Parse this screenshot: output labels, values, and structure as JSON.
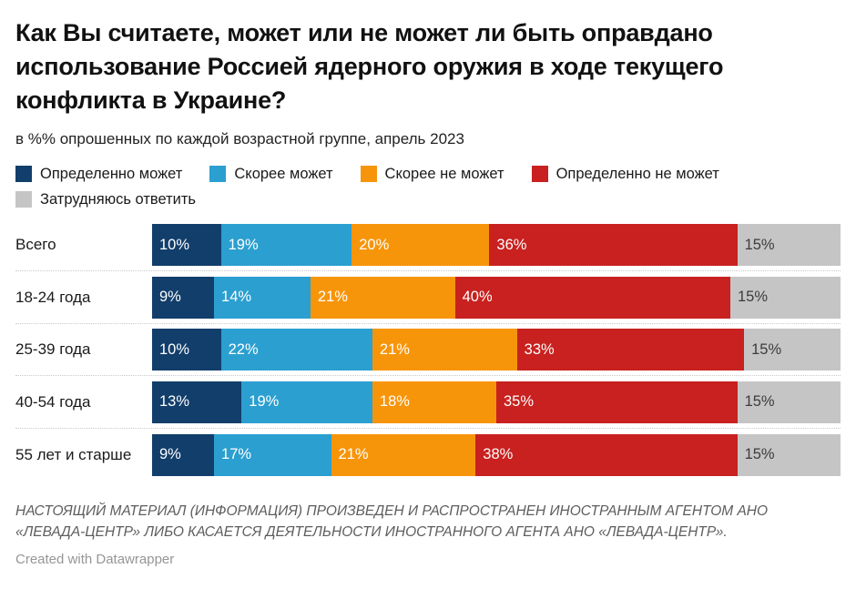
{
  "header": {
    "title": "Как Вы считаете, может или не может ли быть оправдано использование Россией ядерного оружия в ходе текущего конфликта в Украине?",
    "subtitle": "в %% опрошенных по каждой возрастной группе, апрель 2023"
  },
  "colors": {
    "definitely_can": "#123e6b",
    "rather_can": "#2b9fd0",
    "rather_cannot": "#f7950a",
    "definitely_cannot": "#c8211f",
    "hard_to_say": "#c5c5c5"
  },
  "legend": [
    {
      "label": "Определенно может",
      "color": "#123e6b"
    },
    {
      "label": "Скорее может",
      "color": "#2b9fd0"
    },
    {
      "label": "Скорее не может",
      "color": "#f7950a"
    },
    {
      "label": "Определенно не может",
      "color": "#c8211f"
    },
    {
      "label": "Затрудняюсь ответить",
      "color": "#c5c5c5"
    }
  ],
  "chart_data": {
    "type": "bar",
    "stacked": true,
    "orientation": "horizontal",
    "title": "Как Вы считаете, может или не может ли быть оправдано использование Россией ядерного оружия в ходе текущего конфликта в Украине?",
    "subtitle": "в %% опрошенных по каждой возрастной группе, апрель 2023",
    "categories": [
      "Всего",
      "18-24 года",
      "25-39 года",
      "40-54 года",
      "55 лет и старше"
    ],
    "series": [
      {
        "name": "Определенно может",
        "color": "#123e6b",
        "values": [
          10,
          9,
          10,
          13,
          9
        ]
      },
      {
        "name": "Скорее может",
        "color": "#2b9fd0",
        "values": [
          19,
          14,
          22,
          19,
          17
        ]
      },
      {
        "name": "Скорее не может",
        "color": "#f7950a",
        "values": [
          20,
          21,
          21,
          18,
          21
        ]
      },
      {
        "name": "Определенно не может",
        "color": "#c8211f",
        "values": [
          36,
          40,
          33,
          35,
          38
        ]
      },
      {
        "name": "Затрудняюсь ответить",
        "color": "#c5c5c5",
        "values": [
          15,
          15,
          15,
          15,
          15
        ]
      }
    ],
    "value_suffix": "%",
    "xlim": [
      0,
      100
    ],
    "grid": false,
    "legend_position": "top"
  },
  "footer": {
    "disclaimer": "НАСТОЯЩИЙ МАТЕРИАЛ (ИНФОРМАЦИЯ) ПРОИЗВЕДЕН И РАСПРОСТРАНЕН ИНОСТРАННЫМ АГЕНТОМ АНО «ЛЕВАДА-ЦЕНТР» ЛИБО КАСАЕТСЯ ДЕЯТЕЛЬНОСТИ ИНОСТРАННОГО АГЕНТА АНО «ЛЕВАДА-ЦЕНТР».",
    "credit": "Created with Datawrapper"
  }
}
